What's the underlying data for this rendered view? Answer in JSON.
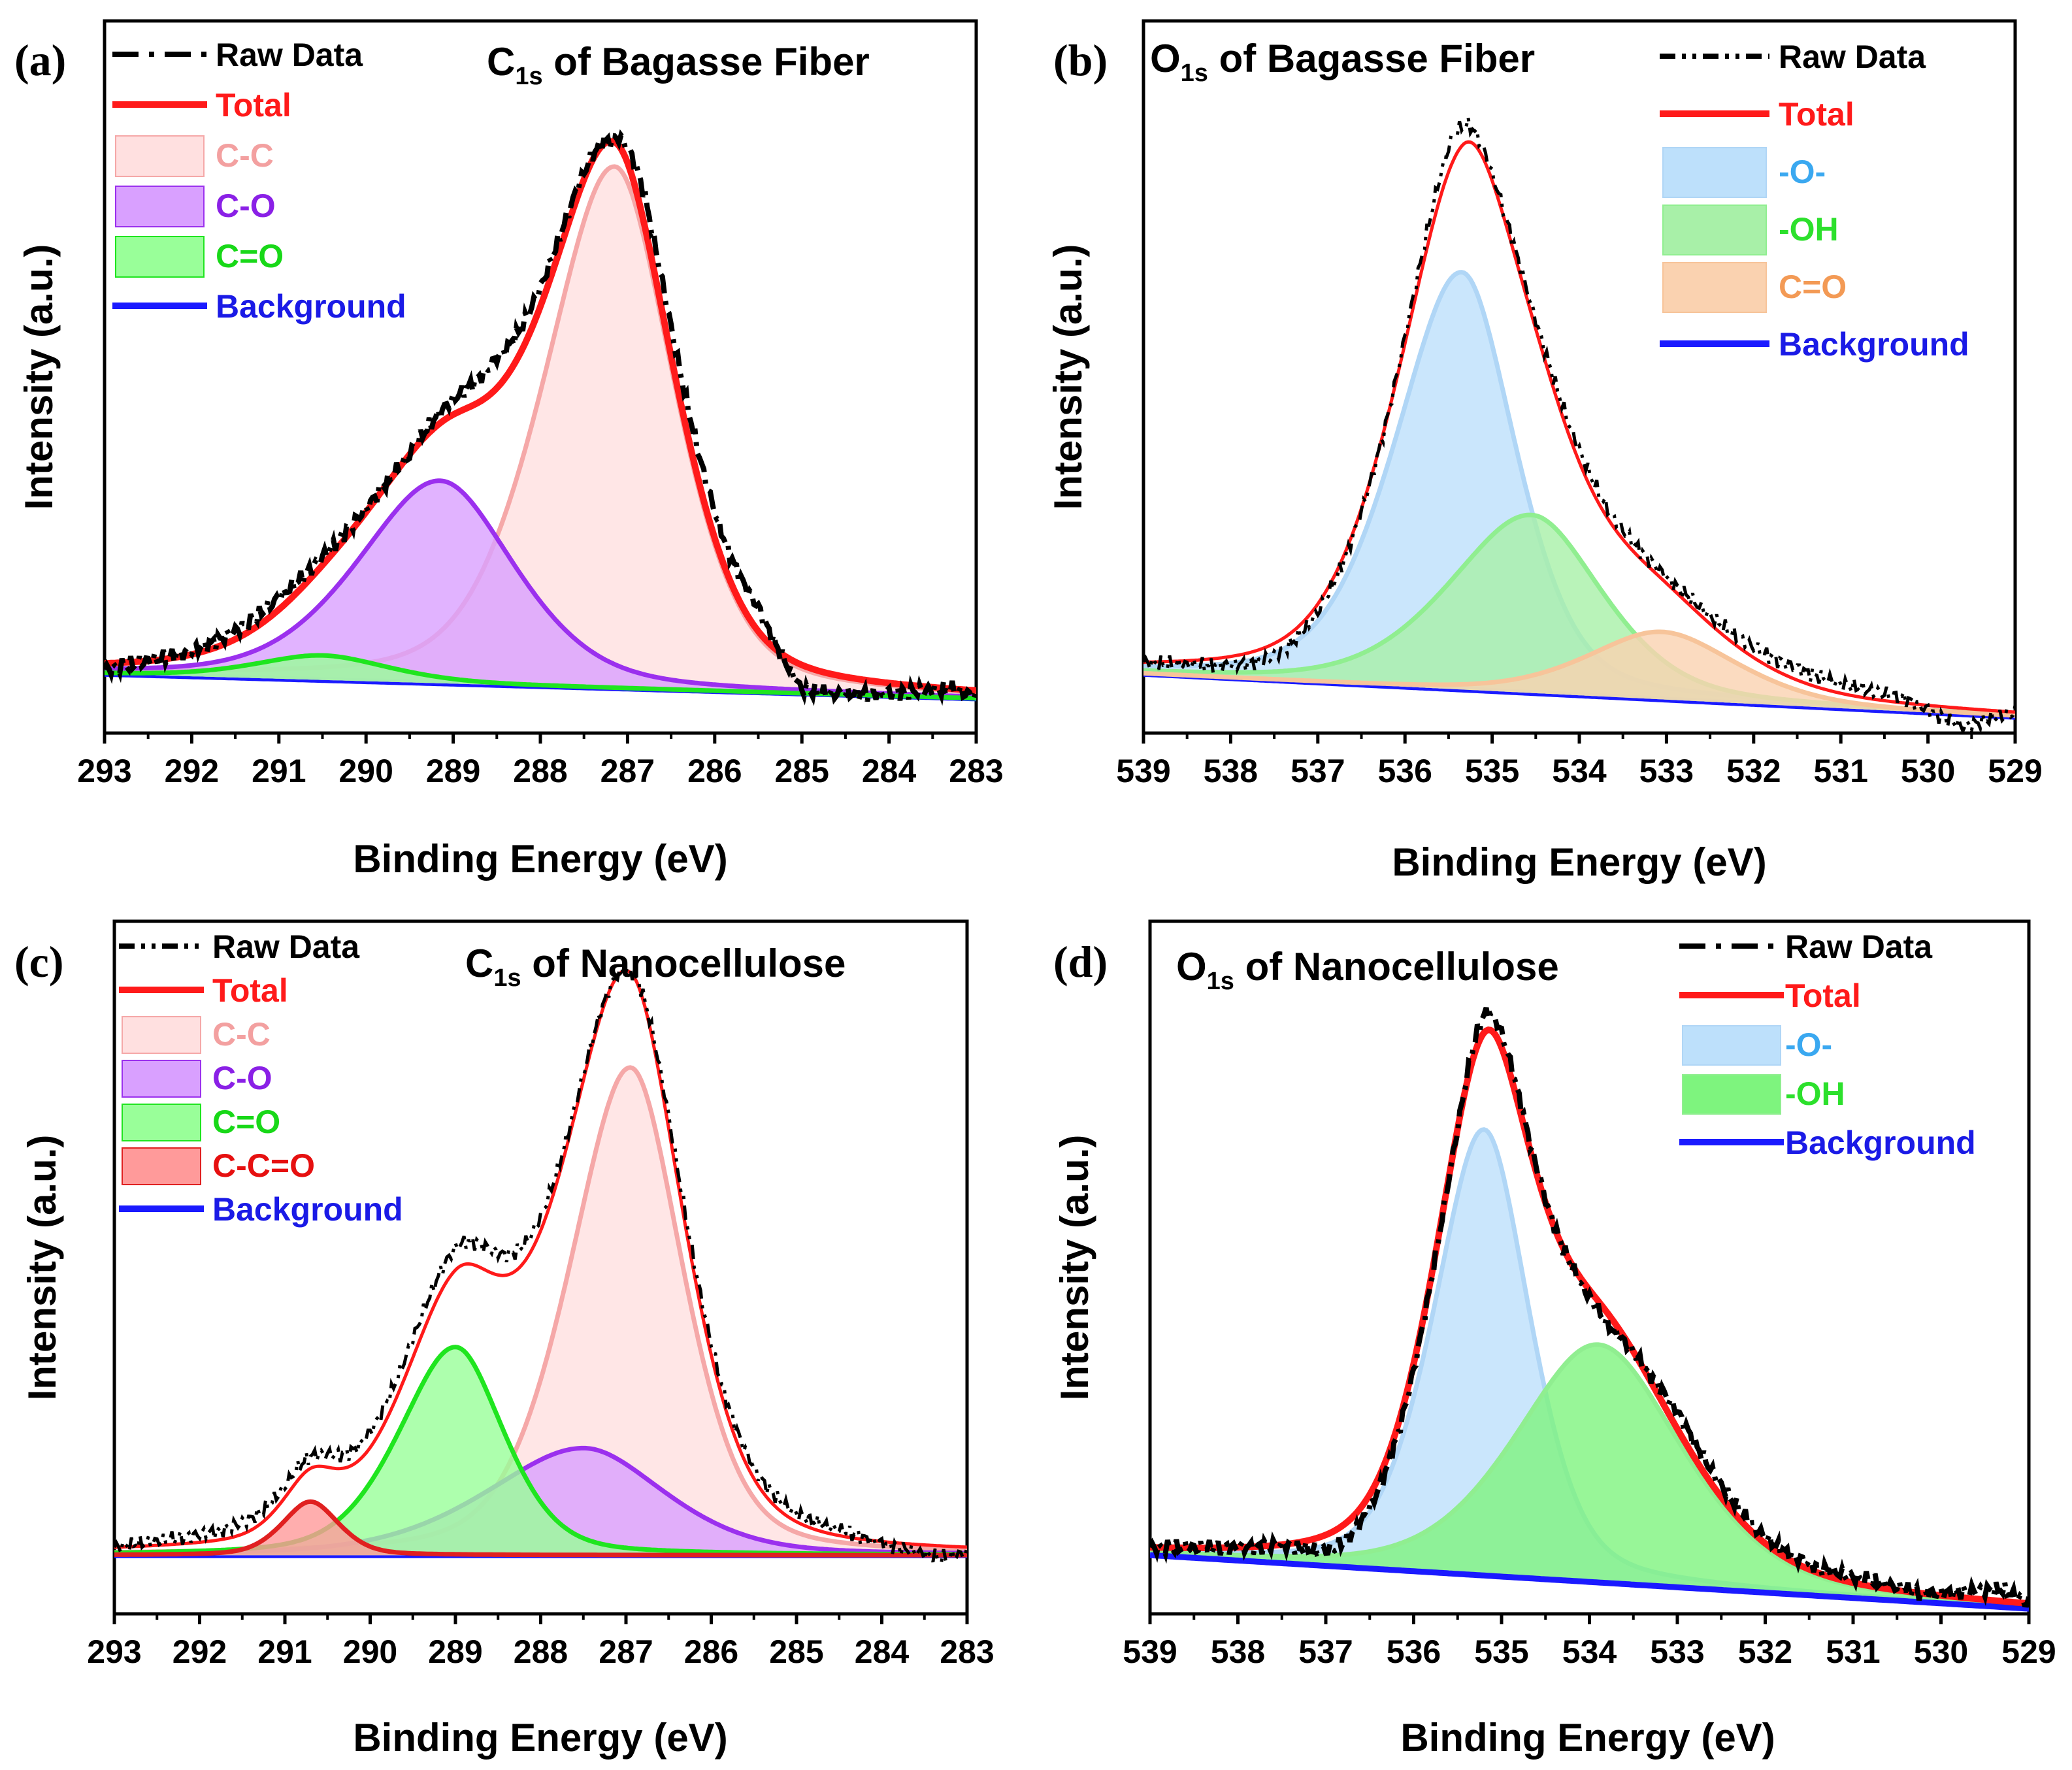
{
  "colors": {
    "raw": "#000000",
    "total": "#ff1a1a",
    "background": "#1a1aff",
    "cc_fill": "#ffe0e0",
    "cc_line": "#f5a8a8",
    "cc_text": "#f3a0a0",
    "co_fill": "#d9a0ff",
    "co_line": "#9b30ee",
    "co_text": "#8a20e6",
    "ceo_fill": "#99ff99",
    "ceo_line": "#1fe51f",
    "ceo_text": "#18d818",
    "ccco_fill": "#ff9a9a",
    "ccco_line": "#e02020",
    "ccco_text": "#e61010",
    "o_fill": "#bde0fb",
    "o_line": "#b0d6f6",
    "o_text": "#3aa8f0",
    "oh_fill": "#a8f0a8",
    "oh_line": "#90ee90",
    "oh_text": "#2ce02c",
    "oh_fill_d": "#7ef47e",
    "co2_fill": "#fad2b0",
    "co2_line": "#f7c49a",
    "co2_text": "#f39a55"
  },
  "chart_data": [
    {
      "type": "line",
      "panel_label": "(a)",
      "title_main": "C",
      "title_sub": "1s",
      "title_rest": " of Bagasse Fiber",
      "xlabel": "Binding Energy (eV)",
      "ylabel": "Intensity (a.u.)",
      "xlim": [
        293,
        283
      ],
      "ylim": [
        -0.1,
        1.0
      ],
      "x_ticks": [
        "293",
        "292",
        "291",
        "290",
        "289",
        "288",
        "287",
        "286",
        "285",
        "284",
        "283"
      ],
      "legend": [
        {
          "label": "Raw Data",
          "style": "dashdot",
          "color": "raw"
        },
        {
          "label": "Total",
          "style": "line",
          "color": "total"
        },
        {
          "label": "C-C",
          "style": "box",
          "color": "cc"
        },
        {
          "label": "C-O",
          "style": "box",
          "color": "co"
        },
        {
          "label": "C=O",
          "style": "box",
          "color": "ceo"
        },
        {
          "label": "Background",
          "style": "line",
          "color": "background"
        }
      ],
      "legend_position": "top-left",
      "background_line": [
        [
          293,
          0.0
        ],
        [
          283,
          -0.04
        ]
      ],
      "peaks": [
        {
          "name": "C-C",
          "center": 287.15,
          "height": 0.85,
          "sigma_left": 0.85,
          "sigma_right": 0.72,
          "color": "cc"
        },
        {
          "name": "C-O",
          "center": 289.15,
          "height": 0.33,
          "sigma_left": 1.0,
          "sigma_right": 0.9,
          "color": "co"
        },
        {
          "name": "C=O",
          "center": 290.5,
          "height": 0.04,
          "sigma_left": 0.8,
          "sigma_right": 0.8,
          "color": "ceo"
        }
      ],
      "raw_offsets": [
        [
          293,
          -0.01
        ],
        [
          292.5,
          0.0
        ],
        [
          291,
          0.02
        ],
        [
          289.5,
          0.0
        ],
        [
          288.5,
          0.05
        ],
        [
          287.2,
          0.0
        ],
        [
          286.8,
          0.05
        ],
        [
          285.5,
          0.04
        ],
        [
          285.0,
          -0.04
        ],
        [
          284.2,
          -0.02
        ],
        [
          283.3,
          0.0
        ],
        [
          283,
          -0.01
        ]
      ],
      "background_top": false
    },
    {
      "type": "line",
      "panel_label": "(b)",
      "title_main": "O",
      "title_sub": "1s",
      "title_rest": " of Bagasse Fiber",
      "xlabel": "Binding Energy (eV)",
      "ylabel": "Intensity (a.u.)",
      "xlim": [
        539,
        529
      ],
      "ylim": [
        -0.1,
        1.0
      ],
      "x_ticks": [
        "539",
        "538",
        "537",
        "536",
        "535",
        "534",
        "533",
        "532",
        "531",
        "530",
        "529"
      ],
      "legend": [
        {
          "label": "Raw Data",
          "style": "dashdotdot",
          "color": "raw"
        },
        {
          "label": "Total",
          "style": "line",
          "color": "total"
        },
        {
          "label": "-O-",
          "style": "box",
          "color": "o"
        },
        {
          "label": "-OH",
          "style": "box",
          "color": "oh"
        },
        {
          "label": "C=O",
          "style": "box",
          "color": "co2"
        },
        {
          "label": "Background",
          "style": "line",
          "color": "background"
        }
      ],
      "legend_position": "top-right",
      "background_line": [
        [
          539,
          0.0
        ],
        [
          529,
          -0.07
        ]
      ],
      "peaks": [
        {
          "name": "-O-",
          "center": 535.35,
          "height": 0.68,
          "sigma_left": 0.8,
          "sigma_right": 0.65,
          "color": "o"
        },
        {
          "name": "-OH",
          "center": 534.55,
          "height": 0.29,
          "sigma_left": 1.0,
          "sigma_right": 0.85,
          "color": "oh"
        },
        {
          "name": "C=O",
          "center": 533.05,
          "height": 0.11,
          "sigma_left": 0.9,
          "sigma_right": 0.9,
          "color": "co2"
        }
      ],
      "raw_offsets": [
        [
          539,
          0.0
        ],
        [
          537.5,
          -0.02
        ],
        [
          536.2,
          0.0
        ],
        [
          535.5,
          0.04
        ],
        [
          535.0,
          0.01
        ],
        [
          534.0,
          0.02
        ],
        [
          533.0,
          0.01
        ],
        [
          531.5,
          0.02
        ],
        [
          530.3,
          0.01
        ],
        [
          529.6,
          -0.03
        ],
        [
          529,
          0.0
        ]
      ],
      "background_top": false
    },
    {
      "type": "line",
      "panel_label": "(c)",
      "title_main": "C",
      "title_sub": "1s",
      "title_rest": " of Nanocellulose",
      "xlabel": "Binding Energy (eV)",
      "ylabel": "Intensity (a.u.)",
      "xlim": [
        293,
        283
      ],
      "ylim": [
        -0.1,
        1.0
      ],
      "x_ticks": [
        "293",
        "292",
        "291",
        "290",
        "289",
        "288",
        "287",
        "286",
        "285",
        "284",
        "283"
      ],
      "legend": [
        {
          "label": "Raw Data",
          "style": "dashdotdot",
          "color": "raw"
        },
        {
          "label": "Total",
          "style": "line",
          "color": "total"
        },
        {
          "label": "C-C",
          "style": "box",
          "color": "cc"
        },
        {
          "label": "C-O",
          "style": "box",
          "color": "co"
        },
        {
          "label": "C=O",
          "style": "box",
          "color": "ceo"
        },
        {
          "label": "C-C=O",
          "style": "box",
          "color": "ccco"
        },
        {
          "label": "Background",
          "style": "line",
          "color": "background"
        }
      ],
      "legend_position": "top-left",
      "background_line": [
        [
          293,
          0.0
        ],
        [
          283,
          0.0
        ]
      ],
      "peaks": [
        {
          "name": "C-C",
          "center": 286.95,
          "height": 0.82,
          "sigma_left": 0.75,
          "sigma_right": 0.65,
          "color": "cc"
        },
        {
          "name": "C-O",
          "center": 287.5,
          "height": 0.18,
          "sigma_left": 1.2,
          "sigma_right": 1.0,
          "color": "co"
        },
        {
          "name": "C=O",
          "center": 289.0,
          "height": 0.35,
          "sigma_left": 0.7,
          "sigma_right": 0.6,
          "color": "ceo"
        },
        {
          "name": "C-C=O",
          "center": 290.7,
          "height": 0.09,
          "sigma_left": 0.35,
          "sigma_right": 0.35,
          "color": "ccco"
        }
      ],
      "raw_offsets": [
        [
          293,
          0.0
        ],
        [
          291.5,
          0.02
        ],
        [
          290.7,
          0.02
        ],
        [
          288.6,
          0.04
        ],
        [
          287.5,
          0.01
        ],
        [
          287.0,
          0.0
        ],
        [
          286.5,
          0.02
        ],
        [
          285.5,
          0.02
        ],
        [
          284.5,
          0.01
        ],
        [
          283.3,
          -0.02
        ],
        [
          283,
          -0.01
        ]
      ],
      "background_top": false
    },
    {
      "type": "line",
      "panel_label": "(d)",
      "title_main": "O",
      "title_sub": "1s",
      "title_rest": " of Nanocellulose",
      "xlabel": "Binding Energy (eV)",
      "ylabel": "Intensity (a.u.)",
      "xlim": [
        539,
        529
      ],
      "ylim": [
        -0.1,
        1.0
      ],
      "x_ticks": [
        "539",
        "538",
        "537",
        "536",
        "535",
        "534",
        "533",
        "532",
        "531",
        "530",
        "529"
      ],
      "legend": [
        {
          "label": "Raw Data",
          "style": "dashdot",
          "color": "raw"
        },
        {
          "label": "Total",
          "style": "line",
          "color": "total"
        },
        {
          "label": "-O-",
          "style": "box",
          "color": "o"
        },
        {
          "label": "-OH",
          "style": "box",
          "color": "oh"
        },
        {
          "label": "Background",
          "style": "line",
          "color": "background"
        }
      ],
      "legend_position": "top-right",
      "background_line": [
        [
          539,
          0.0
        ],
        [
          529,
          -0.09
        ]
      ],
      "peaks": [
        {
          "name": "-O-",
          "center": 535.2,
          "height": 0.75,
          "sigma_left": 0.6,
          "sigma_right": 0.55,
          "color": "o"
        },
        {
          "name": "-OH",
          "center": 533.9,
          "height": 0.4,
          "sigma_left": 1.0,
          "sigma_right": 1.0,
          "color": "oh"
        }
      ],
      "raw_offsets": [
        [
          539,
          0.0
        ],
        [
          537.5,
          0.0
        ],
        [
          536.9,
          -0.03
        ],
        [
          535.5,
          0.0
        ],
        [
          535.2,
          0.03
        ],
        [
          534.3,
          0.0
        ],
        [
          533.8,
          -0.02
        ],
        [
          533.0,
          0.03
        ],
        [
          532.0,
          0.01
        ],
        [
          530.8,
          0.01
        ],
        [
          530.2,
          0.0
        ],
        [
          529.3,
          0.02
        ],
        [
          529,
          0.0
        ]
      ],
      "background_top": true
    }
  ]
}
